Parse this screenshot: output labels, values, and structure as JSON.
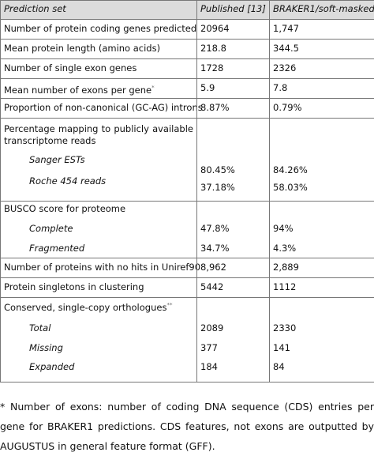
{
  "table": {
    "header": [
      "Prediction set",
      "Published [13]",
      "BRAKER1/soft-masked"
    ],
    "rows": [
      {
        "label": "Number of protein coding genes predicted",
        "values": [
          "20964",
          "1,747"
        ]
      },
      {
        "label": "Mean protein length (amino acids)",
        "values": [
          "218.8",
          "344.5"
        ]
      },
      {
        "label": "Number of single exon genes",
        "values": [
          "1728",
          "2326"
        ]
      },
      {
        "label": "Mean number of exons per gene",
        "note": "*",
        "values": [
          "5.9",
          "7.8"
        ]
      },
      {
        "label": "Proportion of non-canonical (GC-AG) introns",
        "values": [
          "8.87%",
          "0.79%"
        ]
      },
      {
        "label": "Percentage mapping to publicly available transcriptome reads",
        "items": [
          {
            "label": "Sanger ESTs",
            "values": [
              "80.45%",
              "84.26%"
            ]
          },
          {
            "label": "Roche 454 reads",
            "values": [
              "37.18%",
              "58.03%"
            ]
          }
        ]
      },
      {
        "label": "BUSCO score for proteome",
        "items": [
          {
            "label": "Complete",
            "values": [
              "47.8%",
              "94%"
            ]
          },
          {
            "label": "Fragmented",
            "values": [
              "34.7%",
              "4.3%"
            ]
          }
        ]
      },
      {
        "label": "Number of proteins with no hits in Uniref90",
        "values": [
          "8,962",
          "2,889"
        ]
      },
      {
        "label": "Protein singletons in clustering",
        "values": [
          "5442",
          "1112"
        ]
      },
      {
        "label": "Conserved, single-copy orthologues",
        "note": "**",
        "items": [
          {
            "label": "Total",
            "values": [
              "2089",
              "2330"
            ]
          },
          {
            "label": "Missing",
            "values": [
              "377",
              "141"
            ]
          },
          {
            "label": "Expanded",
            "values": [
              "184",
              "84"
            ]
          }
        ]
      }
    ]
  },
  "footnote": "* Number of exons: number of coding DNA sequence (CDS) entries per gene for BRAKER1 predictions. CDS features, not exons are outputted by AUGUSTUS in general feature format (GFF)."
}
